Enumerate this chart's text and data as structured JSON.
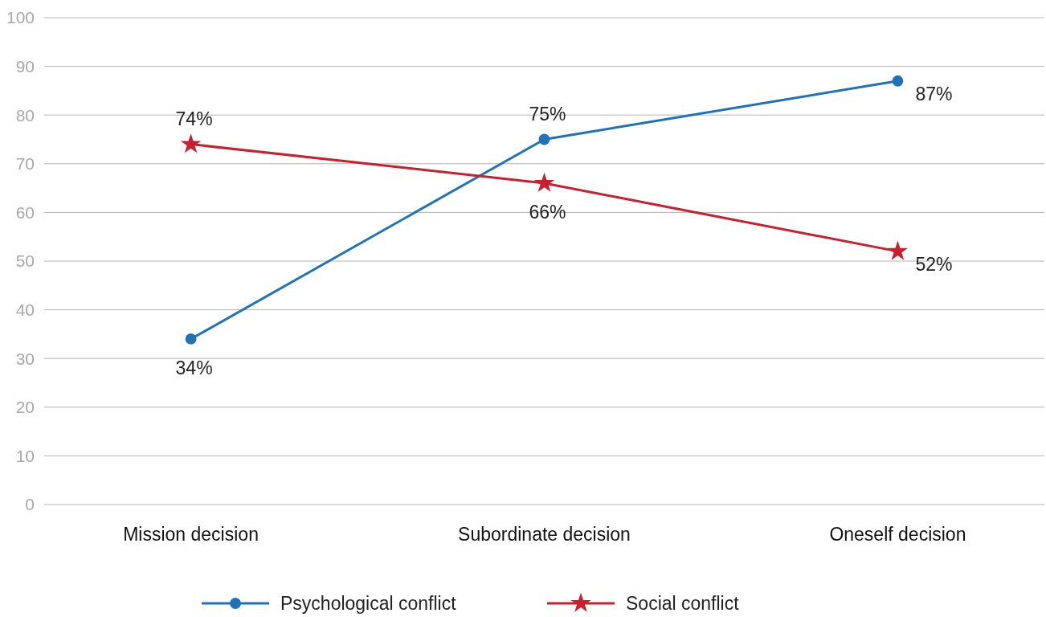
{
  "chart_data": {
    "type": "line",
    "categories": [
      "Mission decision",
      "Subordinate decision",
      "Oneself decision"
    ],
    "series": [
      {
        "name": "Psychological conflict",
        "color": "#1f72b8",
        "values": [
          34,
          75,
          87
        ],
        "value_labels": [
          "34%",
          "75%",
          "87%"
        ],
        "marker": "circle"
      },
      {
        "name": "Social conflict",
        "color": "#c8202f",
        "values": [
          74,
          66,
          52
        ],
        "value_labels": [
          "74%",
          "66%",
          "52%"
        ],
        "marker": "star"
      }
    ],
    "ylim": [
      0,
      100
    ],
    "yticks": [
      0,
      10,
      20,
      30,
      40,
      50,
      60,
      70,
      80,
      90,
      100
    ],
    "grid": "y",
    "legend": "bottom"
  }
}
